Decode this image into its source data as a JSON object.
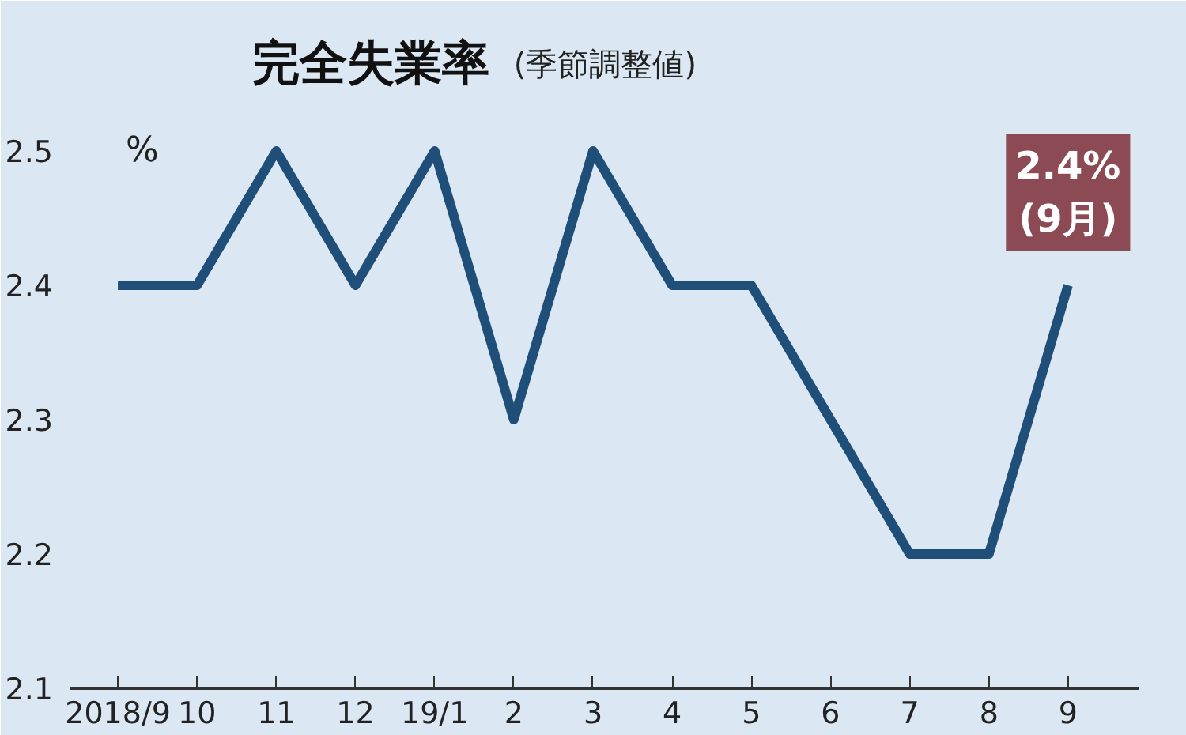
{
  "chart_data": {
    "type": "line",
    "title": "完全失業率",
    "subtitle": "(季節調整値)",
    "ylabel": "%",
    "categories": [
      "2018/9",
      "10",
      "11",
      "12",
      "19/1",
      "2",
      "3",
      "4",
      "5",
      "6",
      "7",
      "8",
      "9"
    ],
    "series": [
      {
        "color": "#1f4e79",
        "values": [
          2.4,
          2.4,
          2.5,
          2.4,
          2.5,
          2.3,
          2.5,
          2.4,
          2.4,
          2.3,
          2.2,
          2.2,
          2.4
        ]
      }
    ],
    "ylim": [
      2.1,
      2.6
    ],
    "yticks": [
      2.1,
      2.2,
      2.3,
      2.4,
      2.5
    ],
    "grid": false,
    "marker": "none",
    "line_style": "solid",
    "annotations": [
      {
        "text": "2.4%\n(9月)",
        "x": "9",
        "y": 2.4
      }
    ]
  }
}
